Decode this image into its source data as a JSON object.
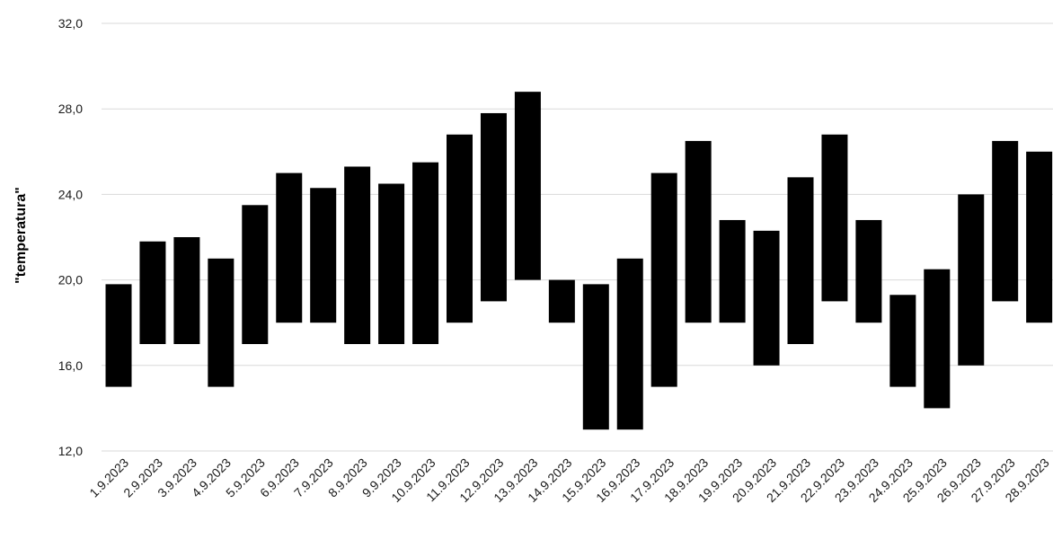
{
  "chart_data": {
    "type": "bar",
    "subtype": "floating-range",
    "ylabel": "\"temperatura\"",
    "ylim": [
      12,
      32
    ],
    "yticks": [
      "12,0",
      "16,0",
      "20,0",
      "24,0",
      "28,0",
      "32,0"
    ],
    "ytick_values": [
      12,
      16,
      20,
      24,
      28,
      32
    ],
    "grid": true,
    "bar_color": "#000000",
    "categories": [
      "1.9.2023",
      "2.9.2023",
      "3.9.2023",
      "4.9.2023",
      "5.9.2023",
      "6.9.2023",
      "7.9.2023",
      "8.9.2023",
      "9.9.2023",
      "10.9.2023",
      "11.9.2023",
      "12.9.2023",
      "13.9.2023",
      "14.9.2023",
      "15.9.2023",
      "16.9.2023",
      "17.9.2023",
      "18.9.2023",
      "19.9.2023",
      "20.9.2023",
      "21.9.2023",
      "22.9.2023",
      "23.9.2023",
      "24.9.2023",
      "25.9.2023",
      "26.9.2023",
      "27.9.2023",
      "28.9.2023"
    ],
    "ranges": [
      [
        15,
        19.8
      ],
      [
        17,
        21.8
      ],
      [
        17,
        22
      ],
      [
        15,
        21
      ],
      [
        17,
        23.5
      ],
      [
        18,
        25
      ],
      [
        18,
        24.3
      ],
      [
        17,
        25.3
      ],
      [
        17,
        24.5
      ],
      [
        17,
        25.5
      ],
      [
        18,
        26.8
      ],
      [
        19,
        27.8
      ],
      [
        20,
        28.8
      ],
      [
        18,
        20
      ],
      [
        13,
        19.8
      ],
      [
        13,
        21
      ],
      [
        15,
        25
      ],
      [
        18,
        26.5
      ],
      [
        18,
        22.8
      ],
      [
        16,
        22.3
      ],
      [
        17,
        24.8
      ],
      [
        19,
        26.8
      ],
      [
        18,
        22.8
      ],
      [
        15,
        19.3
      ],
      [
        14,
        20.5
      ],
      [
        16,
        24
      ],
      [
        19,
        26.5
      ],
      [
        18,
        26
      ]
    ]
  }
}
